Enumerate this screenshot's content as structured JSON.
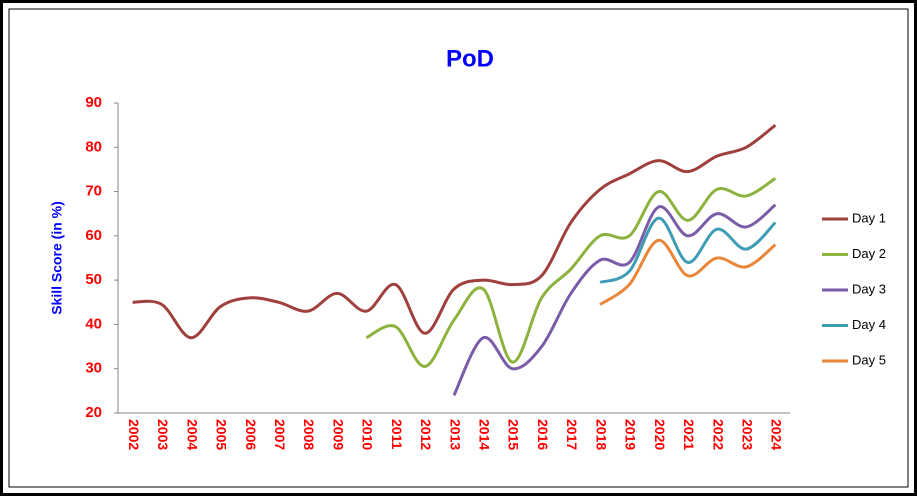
{
  "chart_data": {
    "type": "line",
    "title": "PoD",
    "y_label": "Skill Score (in %)",
    "categories": [
      "2002",
      "2003",
      "2004",
      "2005",
      "2006",
      "2007",
      "2008",
      "2009",
      "2010",
      "2011",
      "2012",
      "2013",
      "2014",
      "2015",
      "2016",
      "2017",
      "2018",
      "2019",
      "2020",
      "2021",
      "2022",
      "2023",
      "2024"
    ],
    "series": [
      {
        "name": "Day 1",
        "color": "#a0403d",
        "values": [
          45,
          44.5,
          37,
          44,
          46,
          45,
          43,
          47,
          43,
          49,
          38,
          48,
          50,
          49,
          51,
          63,
          70.5,
          74,
          77,
          74.5,
          78,
          80,
          85
        ]
      },
      {
        "name": "Day 2",
        "color": "#8db33f",
        "values": [
          null,
          null,
          null,
          null,
          null,
          null,
          null,
          null,
          37,
          39.5,
          30.5,
          41,
          48,
          31.5,
          46,
          52.5,
          60,
          60,
          70,
          63.5,
          70.5,
          69,
          73
        ]
      },
      {
        "name": "Day 3",
        "color": "#7a5ca8",
        "values": [
          null,
          null,
          null,
          null,
          null,
          null,
          null,
          null,
          null,
          null,
          null,
          24,
          37,
          30,
          35,
          47,
          54.5,
          54,
          66.5,
          60,
          65,
          62,
          67
        ]
      },
      {
        "name": "Day 4",
        "color": "#3e9db5",
        "values": [
          null,
          null,
          null,
          null,
          null,
          null,
          null,
          null,
          null,
          null,
          null,
          null,
          null,
          null,
          null,
          null,
          49.5,
          52,
          64,
          54,
          61.5,
          57,
          63
        ]
      },
      {
        "name": "Day 5",
        "color": "#e8873a",
        "values": [
          null,
          null,
          null,
          null,
          null,
          null,
          null,
          null,
          null,
          null,
          null,
          null,
          null,
          null,
          null,
          null,
          44.5,
          49,
          59,
          51,
          55,
          53,
          58
        ]
      }
    ],
    "ylim": [
      20,
      90
    ],
    "yticks": [
      20,
      30,
      40,
      50,
      60,
      70,
      80,
      90
    ],
    "grid": false,
    "legend": "right"
  }
}
